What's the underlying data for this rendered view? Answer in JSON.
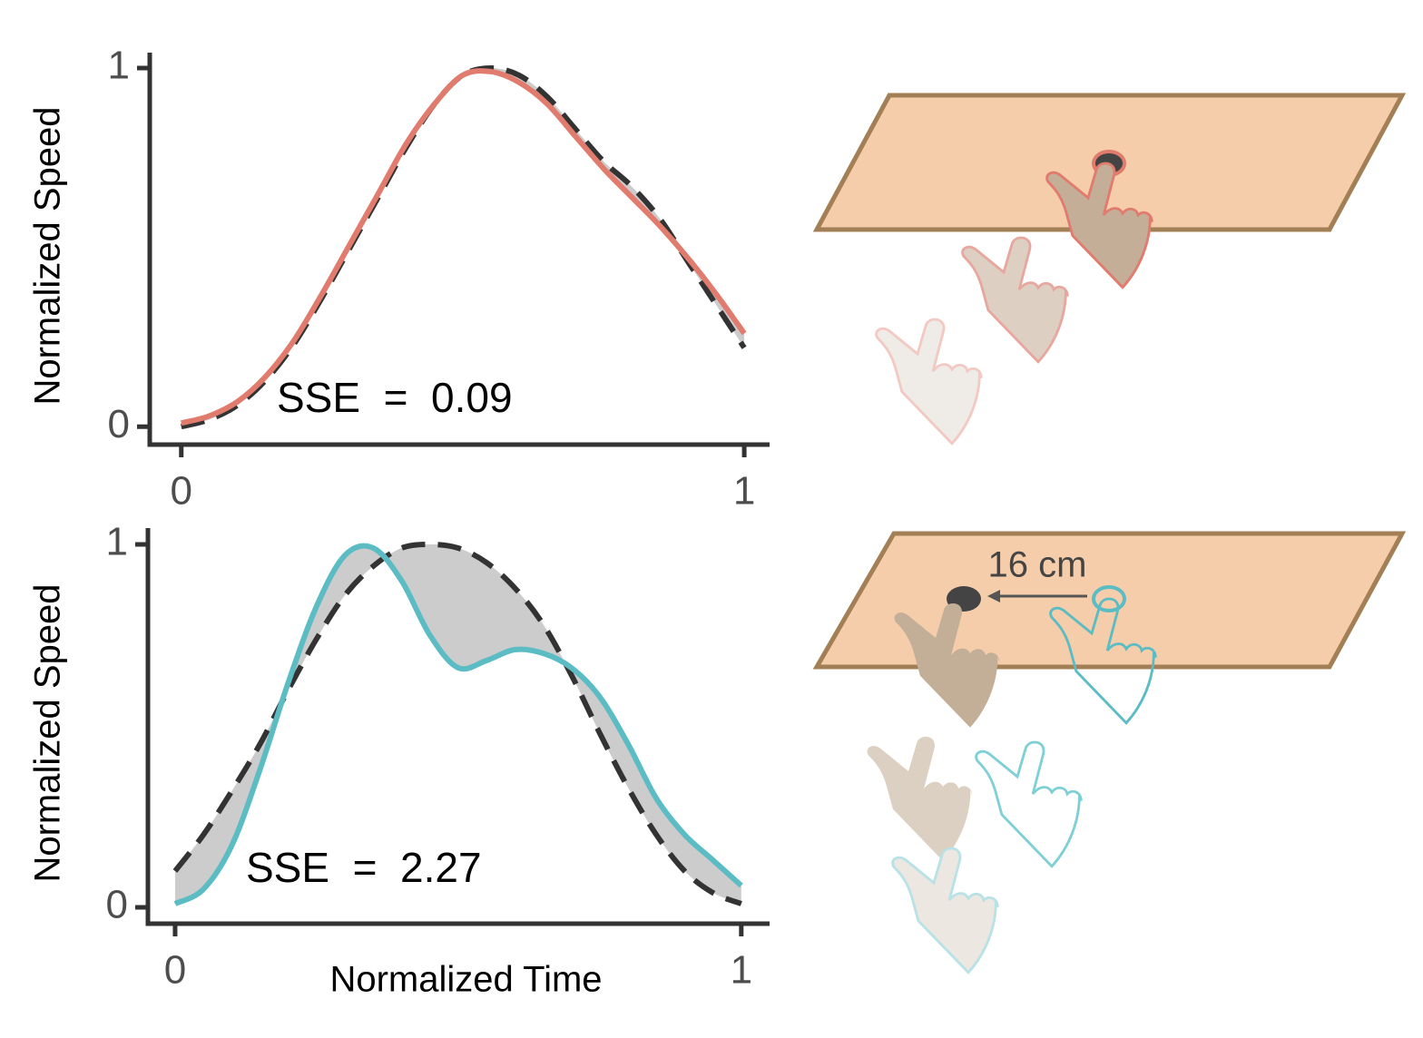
{
  "chart_data": [
    {
      "type": "line",
      "y_label": "Normalized Speed",
      "annotation": "SSE  =  0.09",
      "x": [
        0,
        0.05,
        0.1,
        0.15,
        0.2,
        0.25,
        0.3,
        0.35,
        0.4,
        0.45,
        0.5,
        0.55,
        0.6,
        0.65,
        0.7,
        0.75,
        0.8,
        0.85,
        0.9,
        0.95,
        1
      ],
      "series": [
        {
          "color": "#e07b6e",
          "style": "solid",
          "values": [
            0.01,
            0.03,
            0.07,
            0.14,
            0.24,
            0.37,
            0.51,
            0.65,
            0.79,
            0.9,
            0.98,
            0.99,
            0.96,
            0.9,
            0.81,
            0.72,
            0.64,
            0.56,
            0.47,
            0.37,
            0.26
          ]
        },
        {
          "color": "#333333",
          "style": "dashed",
          "values": [
            0.0,
            0.02,
            0.06,
            0.13,
            0.23,
            0.36,
            0.5,
            0.64,
            0.78,
            0.9,
            0.98,
            1.0,
            0.98,
            0.92,
            0.83,
            0.74,
            0.67,
            0.58,
            0.46,
            0.34,
            0.22
          ]
        }
      ],
      "fill_between": "#cccccc",
      "xlim": [
        -0.056,
        1.045
      ],
      "xticks": [
        0,
        1
      ],
      "ylim": [
        -0.05,
        1.043
      ],
      "yticks": [
        0,
        1
      ]
    },
    {
      "type": "line",
      "y_label": "Normalized Speed",
      "x_label": "Normalized Time",
      "annotation": "SSE  =  2.27",
      "x": [
        0,
        0.05,
        0.1,
        0.15,
        0.2,
        0.25,
        0.3,
        0.35,
        0.4,
        0.45,
        0.5,
        0.55,
        0.6,
        0.65,
        0.7,
        0.75,
        0.8,
        0.85,
        0.9,
        0.95,
        1
      ],
      "series": [
        {
          "color": "#5bbcc4",
          "style": "solid",
          "values": [
            0.01,
            0.05,
            0.17,
            0.38,
            0.62,
            0.83,
            0.97,
            0.99,
            0.9,
            0.75,
            0.66,
            0.68,
            0.71,
            0.7,
            0.66,
            0.58,
            0.45,
            0.3,
            0.2,
            0.13,
            0.06
          ]
        },
        {
          "color": "#333333",
          "style": "dashed",
          "values": [
            0.1,
            0.2,
            0.32,
            0.45,
            0.6,
            0.74,
            0.86,
            0.94,
            0.99,
            1.0,
            0.99,
            0.95,
            0.88,
            0.78,
            0.64,
            0.48,
            0.33,
            0.2,
            0.1,
            0.04,
            0.01
          ]
        }
      ],
      "fill_between": "#cccccc",
      "xlim": [
        -0.048,
        1.05
      ],
      "xticks": [
        0,
        1
      ],
      "ylim": [
        -0.045,
        1.045
      ],
      "yticks": [
        0,
        1
      ]
    }
  ],
  "illustration": {
    "distance_label": "16 cm"
  }
}
